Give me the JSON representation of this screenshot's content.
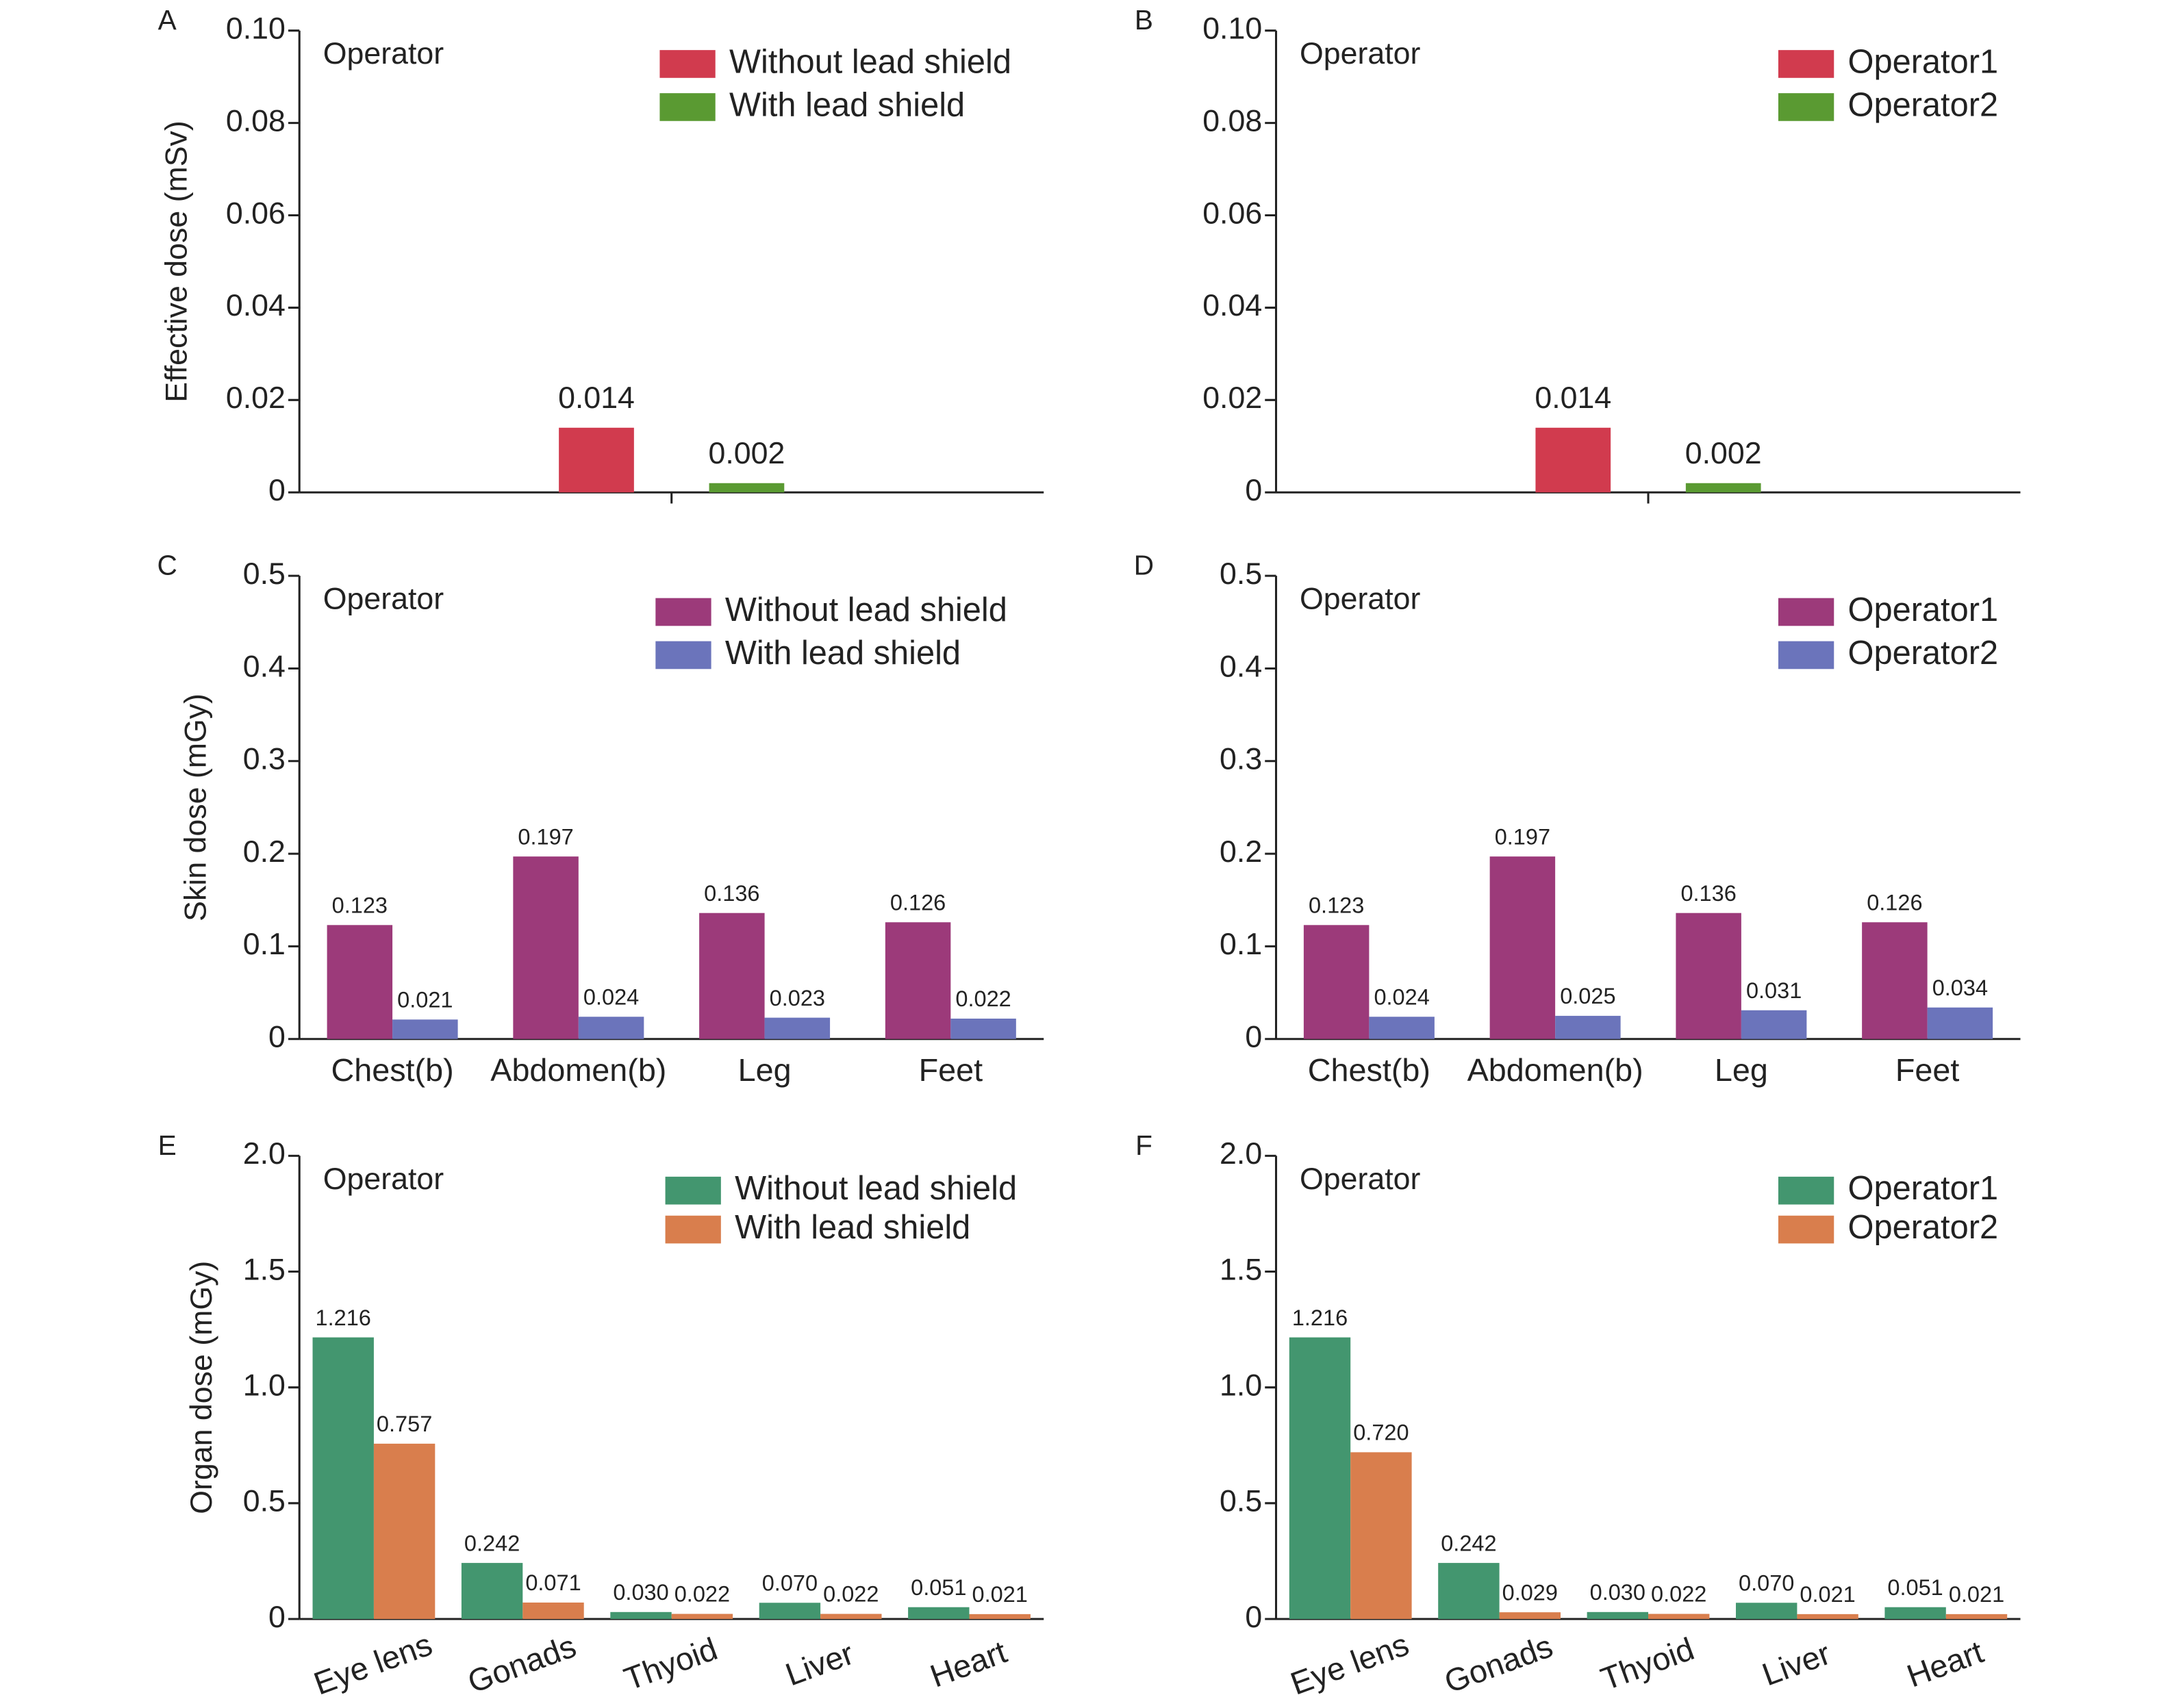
{
  "chart_data": [
    {
      "type": "bar",
      "panel": "A",
      "annotation": "Operator",
      "ylabel": "Effective dose (mSv)",
      "categories": [
        null
      ],
      "series": [
        {
          "name": "Without lead shield",
          "color": "#d13b4e",
          "values": [
            0.014
          ]
        },
        {
          "name": "With lead shield",
          "color": "#5a9a32",
          "values": [
            0.002
          ]
        }
      ],
      "ylim": [
        0,
        0.1
      ],
      "yticks": [
        0,
        0.02,
        0.04,
        0.06,
        0.08,
        {
          "value": 0.1,
          "label": "0.10"
        }
      ]
    },
    {
      "type": "bar",
      "panel": "B",
      "annotation": "Operator",
      "categories": [
        null
      ],
      "series": [
        {
          "name": "Operator1",
          "color": "#d13b4e",
          "values": [
            0.014
          ]
        },
        {
          "name": "Operator2",
          "color": "#5a9a32",
          "values": [
            0.002
          ]
        }
      ],
      "ylim": [
        0,
        0.1
      ],
      "yticks": [
        0,
        0.02,
        0.04,
        0.06,
        0.08,
        {
          "value": 0.1,
          "label": "0.10"
        }
      ]
    },
    {
      "type": "bar",
      "panel": "C",
      "annotation": "Operator",
      "ylabel": "Skin dose (mGy)",
      "categories": [
        "Chest(b)",
        "Abdomen(b)",
        "Leg",
        "Feet"
      ],
      "series": [
        {
          "name": "Without lead shield",
          "color": "#9c3a7a",
          "values": [
            0.123,
            0.197,
            0.136,
            0.126
          ]
        },
        {
          "name": "With lead shield",
          "color": "#6b74bb",
          "values": [
            0.021,
            0.024,
            0.023,
            0.022
          ]
        }
      ],
      "ylim": [
        0,
        0.5
      ],
      "yticks": [
        0,
        0.1,
        0.2,
        0.3,
        0.4,
        0.5
      ]
    },
    {
      "type": "bar",
      "panel": "D",
      "annotation": "Operator",
      "categories": [
        "Chest(b)",
        "Abdomen(b)",
        "Leg",
        "Feet"
      ],
      "series": [
        {
          "name": "Operator1",
          "color": "#9c3a7a",
          "values": [
            0.123,
            0.197,
            0.136,
            0.126
          ]
        },
        {
          "name": "Operator2",
          "color": "#6b74bb",
          "values": [
            0.024,
            0.025,
            0.031,
            0.034
          ]
        }
      ],
      "ylim": [
        0,
        0.5
      ],
      "yticks": [
        0,
        0.1,
        0.2,
        0.3,
        0.4,
        0.5
      ]
    },
    {
      "type": "bar",
      "panel": "E",
      "annotation": "Operator",
      "ylabel": "Organ dose (mGy)",
      "categories": [
        "Eye lens",
        "Gonads",
        "Thyoid",
        "Liver",
        "Heart"
      ],
      "series": [
        {
          "name": "Without lead shield",
          "color": "#43966f",
          "values": [
            1.216,
            0.242,
            0.03,
            0.07,
            0.051
          ],
          "value_labels": [
            "1.216",
            "0.242",
            "0.030",
            "0.070",
            "0.051"
          ]
        },
        {
          "name": "With lead shield",
          "color": "#d97e4d",
          "values": [
            0.757,
            0.071,
            0.022,
            0.022,
            0.021
          ],
          "value_labels": [
            "0.757",
            "0.071",
            "0.022",
            "0.022",
            "0.021"
          ]
        }
      ],
      "ylim": [
        0,
        2
      ],
      "yticks": [
        0,
        0.5,
        {
          "value": 1,
          "label": "1.0"
        },
        1.5,
        {
          "value": 2,
          "label": "2.0"
        }
      ]
    },
    {
      "type": "bar",
      "panel": "F",
      "annotation": "Operator",
      "categories": [
        "Eye lens",
        "Gonads",
        "Thyoid",
        "Liver",
        "Heart"
      ],
      "series": [
        {
          "name": "Operator1",
          "color": "#43966f",
          "values": [
            1.216,
            0.242,
            0.03,
            0.07,
            0.051
          ],
          "value_labels": [
            "1.216",
            "0.242",
            "0.030",
            "0.070",
            "0.051"
          ]
        },
        {
          "name": "Operator2",
          "color": "#d97e4d",
          "values": [
            0.72,
            0.029,
            0.022,
            0.021,
            0.021
          ],
          "value_labels": [
            "0.720",
            "0.029",
            "0.022",
            "0.021",
            "0.021"
          ]
        }
      ],
      "ylim": [
        0,
        2
      ],
      "yticks": [
        0,
        0.5,
        {
          "value": 1,
          "label": "1.0"
        },
        1.5,
        {
          "value": 2,
          "label": "2.0"
        }
      ]
    }
  ]
}
